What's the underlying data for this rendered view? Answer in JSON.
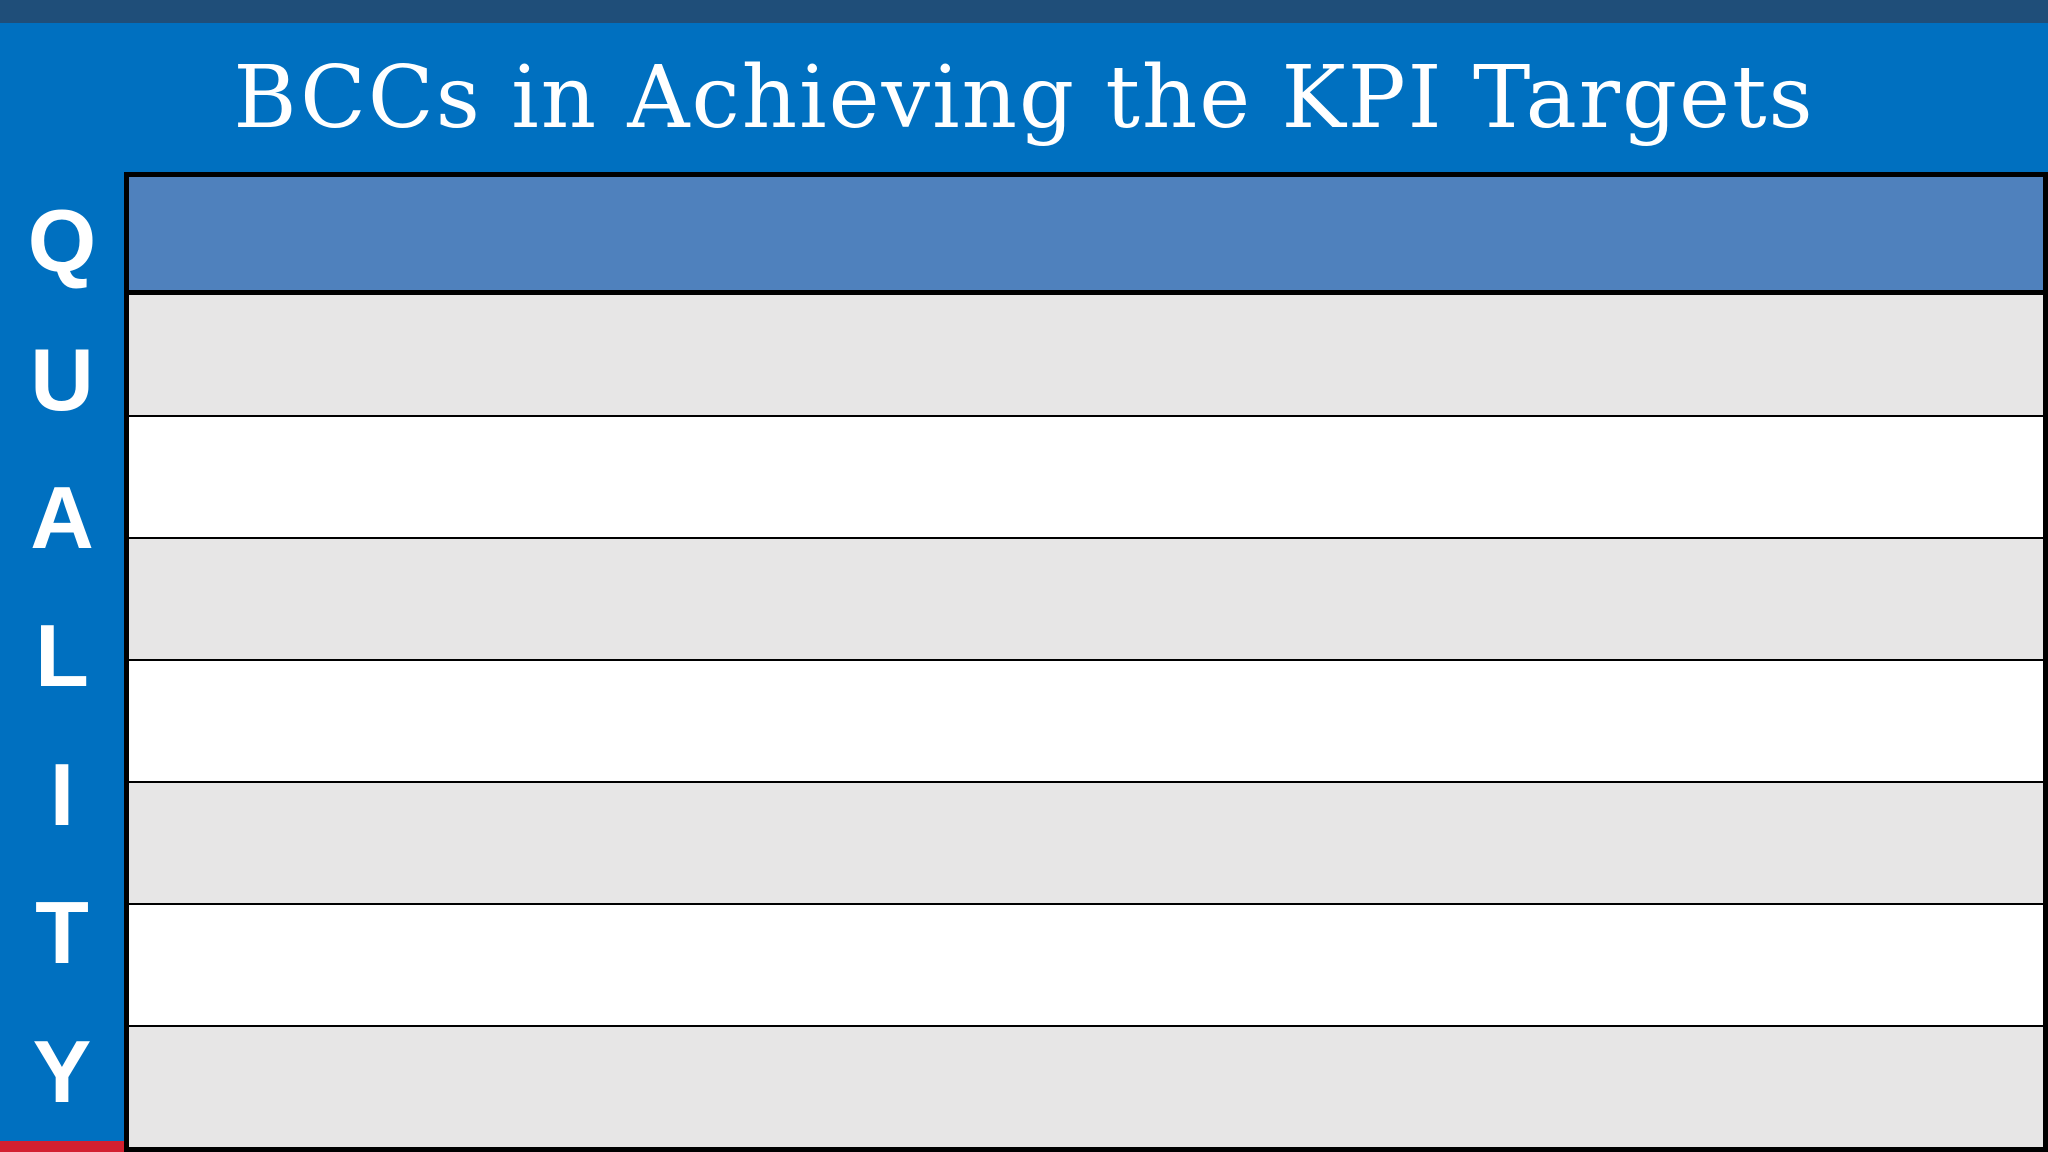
{
  "title": "BCCs in Achieving the KPI Targets",
  "sidebar": {
    "label": "QUALITY",
    "letters": [
      "Q",
      "U",
      "A",
      "L",
      "I",
      "T",
      "Y"
    ]
  },
  "table": {
    "header": {
      "label": ""
    },
    "rows": [
      {
        "label": "",
        "shade": "gray"
      },
      {
        "label": "",
        "shade": "white"
      },
      {
        "label": "",
        "shade": "gray"
      },
      {
        "label": "",
        "shade": "white"
      },
      {
        "label": "",
        "shade": "gray"
      },
      {
        "label": "",
        "shade": "white"
      },
      {
        "label": "",
        "shade": "gray"
      }
    ]
  },
  "colors": {
    "navy": "#1F4E79",
    "blue": "#0070C0",
    "steel": "#4F81BD",
    "gray_row": "#E7E6E6",
    "white_row": "#FFFFFF",
    "red": "#D32030",
    "border": "#000000",
    "title_text": "#FFFFFF"
  }
}
